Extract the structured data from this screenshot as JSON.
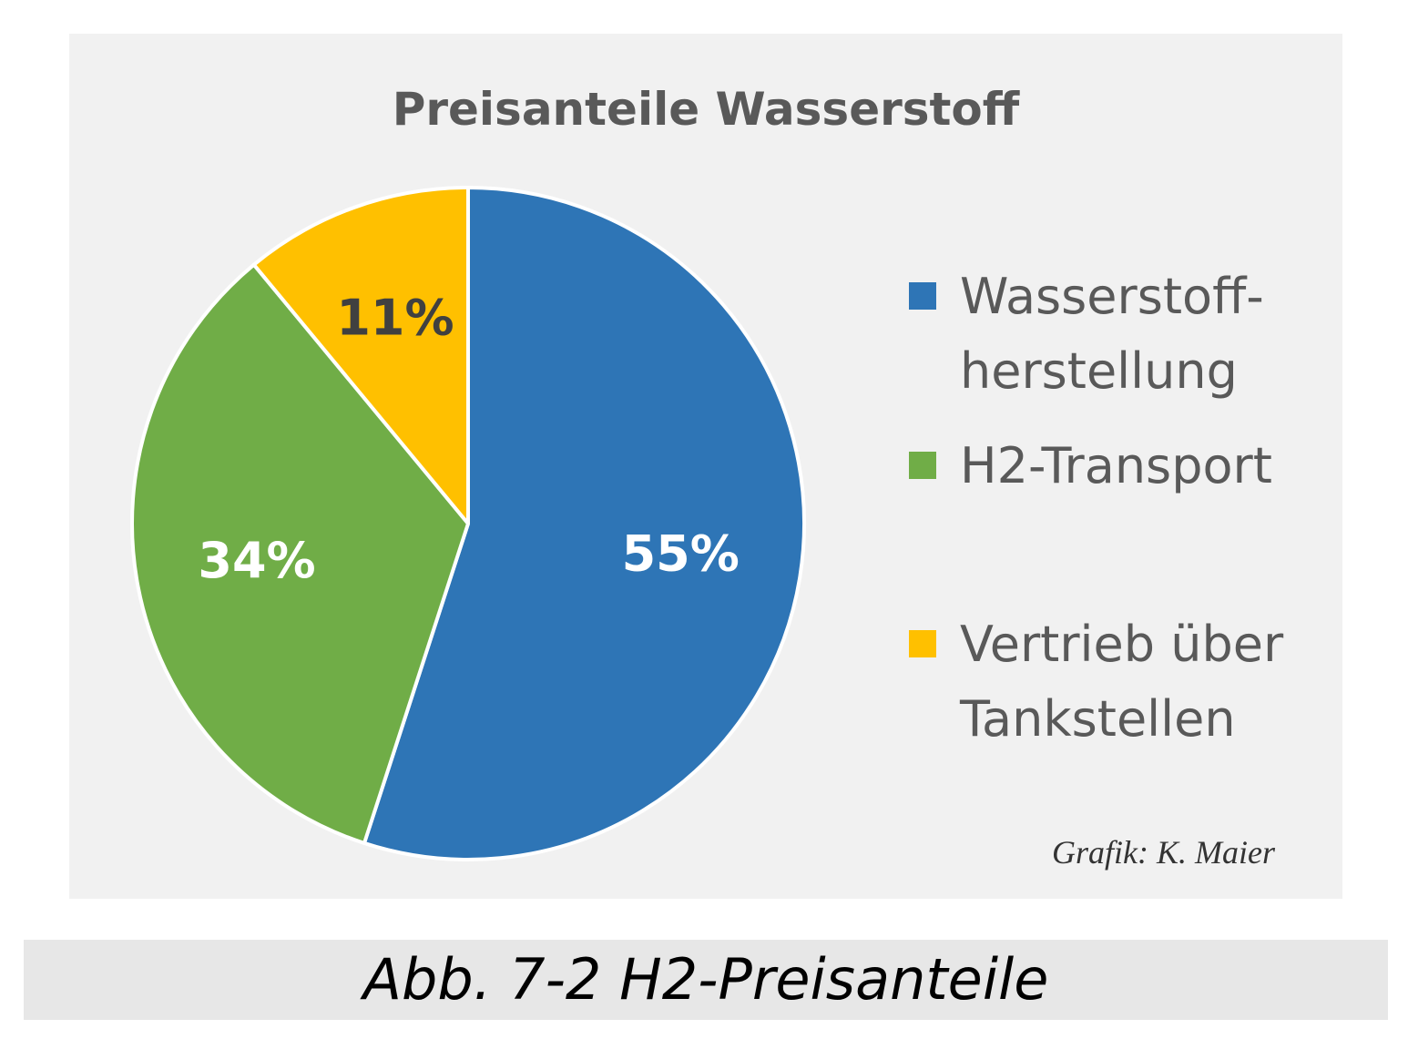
{
  "chart_data": {
    "type": "pie",
    "title": "Preisanteile Wasserstoff",
    "categories": [
      "Wasserstoff-\nherstellung",
      "H2-Transport",
      "Vertrieb über\nTankstellen"
    ],
    "values": [
      55,
      34,
      11
    ],
    "value_labels": [
      "55%",
      "34%",
      "11%"
    ],
    "colors": [
      "#2e75b6",
      "#70ad47",
      "#ffc000"
    ],
    "label_colors": [
      "#ffffff",
      "#ffffff",
      "#404040"
    ],
    "start_angle": "12 o'clock",
    "direction": "clockwise",
    "legend_position": "right"
  },
  "credit": "Grafik: K. Maier",
  "caption": "Abb. 7-2 H2-Preisanteile"
}
